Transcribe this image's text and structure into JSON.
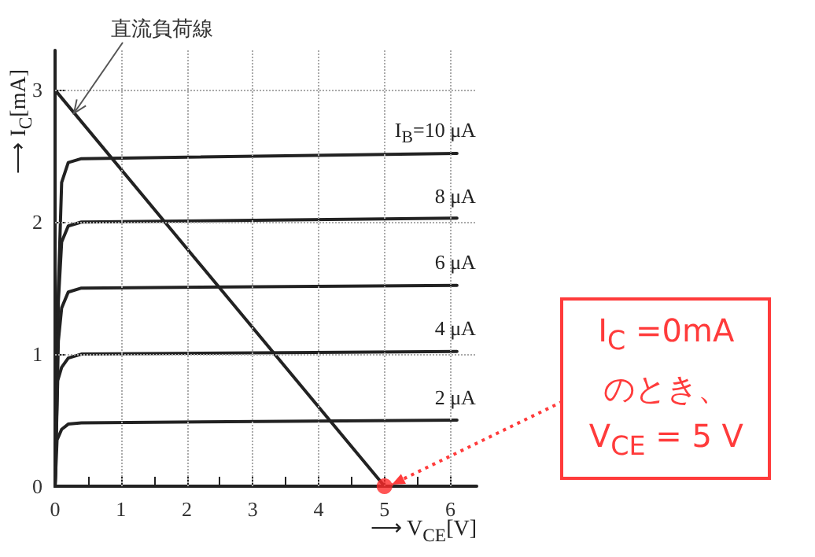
{
  "chart_data": {
    "type": "line",
    "xlabel": "⟶ V$_{CE}$[V]",
    "ylabel": "⟶ I$_{C}$[mA]",
    "xlim": [
      0,
      6.4
    ],
    "ylim": [
      0,
      3.3
    ],
    "xticks": [
      0,
      {
        "value": 0.5,
        "label": null
      },
      1,
      {
        "value": 1.5,
        "label": null
      },
      2,
      {
        "value": 2.5,
        "label": null
      },
      3,
      {
        "value": 3.5,
        "label": null
      },
      4,
      {
        "value": 4.5,
        "label": null
      },
      5,
      {
        "value": 5.5,
        "label": null
      },
      6
    ],
    "yticks": [
      0,
      1,
      2,
      3
    ],
    "grid": true,
    "legend": false,
    "marker": "none",
    "line_style": "solid",
    "series": [
      {
        "name": "I$_{B}$=10 μA",
        "color": "#222222",
        "x": [
          0,
          0.05,
          0.1,
          0.2,
          0.4,
          6.1
        ],
        "values": [
          0,
          1.5,
          2.3,
          2.45,
          2.48,
          2.52
        ]
      },
      {
        "name": "8 μA",
        "color": "#222222",
        "x": [
          0,
          0.05,
          0.1,
          0.2,
          0.4,
          6.1
        ],
        "values": [
          0,
          1.4,
          1.85,
          1.97,
          2.0,
          2.03
        ]
      },
      {
        "name": "6 μA",
        "color": "#222222",
        "x": [
          0,
          0.05,
          0.1,
          0.2,
          0.4,
          6.1
        ],
        "values": [
          0,
          1.1,
          1.35,
          1.47,
          1.5,
          1.52
        ]
      },
      {
        "name": "4 μA",
        "color": "#222222",
        "x": [
          0,
          0.04,
          0.1,
          0.2,
          0.4,
          6.1
        ],
        "values": [
          0,
          0.8,
          0.9,
          0.97,
          1.0,
          1.02
        ]
      },
      {
        "name": "2 μA",
        "color": "#222222",
        "x": [
          0,
          0.03,
          0.1,
          0.2,
          0.4,
          6.1
        ],
        "values": [
          0,
          0.35,
          0.43,
          0.47,
          0.48,
          0.5
        ]
      },
      {
        "color": "#222222",
        "x": [
          0,
          5
        ],
        "values": [
          3,
          0
        ]
      },
      {
        "type": "scatter",
        "marker": "circle",
        "color": "#ff2a2a",
        "x": [
          5
        ],
        "values": [
          0
        ]
      }
    ],
    "annotations": [
      {
        "text": "直流負荷線",
        "x": 0.25,
        "y": 2.8
      },
      {
        "text": "I$_{C}$ =0mA\nのとき、\nV$_{CE}$ = 5 V",
        "x": 5,
        "y": 0
      }
    ]
  }
}
